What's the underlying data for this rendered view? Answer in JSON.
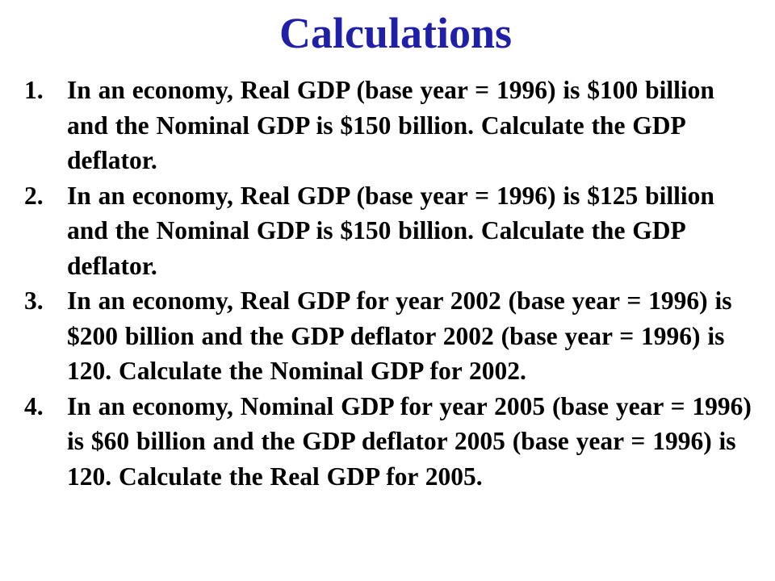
{
  "slide": {
    "title": "Calculations",
    "title_color": "#1f1fa8",
    "problems": [
      {
        "number": "1.",
        "text": "In an economy, Real GDP (base year = 1996) is $100 billion and the Nominal GDP is $150 billion. Calculate the GDP deflator."
      },
      {
        "number": "2.",
        "text": "In an economy, Real GDP (base year = 1996) is $125 billion and the Nominal GDP is $150 billion. Calculate the GDP deflator."
      },
      {
        "number": "3.",
        "text": "In an economy, Real GDP for year 2002 (base year = 1996) is $200 billion and the GDP deflator 2002 (base year = 1996) is 120. Calculate the Nominal GDP for 2002."
      },
      {
        "number": "4.",
        "text": "In an economy, Nominal GDP for year 2005 (base year = 1996) is $60 billion and the GDP deflator 2005 (base year = 1996) is 120. Calculate the Real GDP for 2005."
      }
    ]
  }
}
